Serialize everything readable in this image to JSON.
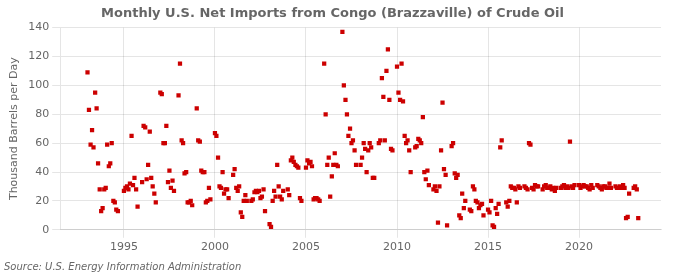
{
  "chart_data": {
    "type": "scatter",
    "title": "Monthly U.S. Net Imports from Congo (Brazzaville) of Crude Oil",
    "ylabel": "Thousand Barrels per Day",
    "annotation": "Source: U.S. Energy Information Administration",
    "color": "#cc0000",
    "marker": "square",
    "grid": true,
    "xlim": [
      1991.5,
      2024.5
    ],
    "xticks": [
      1995,
      2000,
      2005,
      2010,
      2015,
      2020
    ],
    "ylim": [
      0,
      140
    ],
    "yticks": [
      0,
      20,
      40,
      60,
      80,
      100,
      120,
      140
    ],
    "x": [
      1993.0,
      1993.08,
      1993.17,
      1993.25,
      1993.33,
      1993.42,
      1993.5,
      1993.58,
      1993.67,
      1993.75,
      1993.83,
      1993.92,
      1994.0,
      1994.08,
      1994.17,
      1994.25,
      1994.33,
      1994.42,
      1994.5,
      1994.58,
      1994.67,
      1995.0,
      1995.08,
      1995.17,
      1995.25,
      1995.33,
      1995.42,
      1995.5,
      1995.58,
      1995.67,
      1995.75,
      1996.0,
      1996.08,
      1996.17,
      1996.25,
      1996.33,
      1996.42,
      1996.5,
      1996.58,
      1996.67,
      1996.75,
      1997.0,
      1997.08,
      1997.17,
      1997.25,
      1997.33,
      1997.42,
      1997.5,
      1997.58,
      1997.67,
      1997.75,
      1998.0,
      1998.08,
      1998.17,
      1998.25,
      1998.33,
      1998.42,
      1998.5,
      1998.58,
      1998.67,
      1998.75,
      1999.0,
      1999.08,
      1999.17,
      1999.25,
      1999.33,
      1999.42,
      1999.5,
      1999.58,
      1999.67,
      1999.75,
      2000.0,
      2000.08,
      2000.17,
      2000.25,
      2000.33,
      2000.42,
      2000.5,
      2000.58,
      2000.67,
      2000.75,
      2001.0,
      2001.08,
      2001.17,
      2001.25,
      2001.33,
      2001.42,
      2001.5,
      2001.58,
      2001.67,
      2001.75,
      2002.0,
      2002.08,
      2002.17,
      2002.25,
      2002.33,
      2002.42,
      2002.5,
      2002.58,
      2002.67,
      2002.75,
      2003.0,
      2003.08,
      2003.17,
      2003.25,
      2003.33,
      2003.42,
      2003.5,
      2003.58,
      2003.67,
      2003.75,
      2004.0,
      2004.08,
      2004.17,
      2004.25,
      2004.33,
      2004.42,
      2004.5,
      2004.58,
      2004.67,
      2004.75,
      2005.0,
      2005.08,
      2005.17,
      2005.25,
      2005.33,
      2005.42,
      2005.5,
      2005.58,
      2005.67,
      2005.75,
      2006.0,
      2006.08,
      2006.17,
      2006.25,
      2006.33,
      2006.42,
      2006.5,
      2006.58,
      2006.67,
      2006.75,
      2007.0,
      2007.08,
      2007.17,
      2007.25,
      2007.33,
      2007.42,
      2007.5,
      2007.58,
      2007.67,
      2007.75,
      2008.0,
      2008.08,
      2008.17,
      2008.25,
      2008.33,
      2008.42,
      2008.5,
      2008.58,
      2008.67,
      2008.75,
      2009.0,
      2009.08,
      2009.17,
      2009.25,
      2009.33,
      2009.42,
      2009.5,
      2009.58,
      2009.67,
      2009.75,
      2010.0,
      2010.08,
      2010.17,
      2010.25,
      2010.33,
      2010.42,
      2010.5,
      2010.58,
      2010.67,
      2010.75,
      2011.0,
      2011.08,
      2011.17,
      2011.25,
      2011.33,
      2011.42,
      2011.5,
      2011.58,
      2011.67,
      2011.75,
      2012.0,
      2012.08,
      2012.17,
      2012.25,
      2012.33,
      2012.42,
      2012.5,
      2012.58,
      2012.67,
      2012.75,
      2013.0,
      2013.08,
      2013.17,
      2013.25,
      2013.33,
      2013.42,
      2013.5,
      2013.58,
      2013.67,
      2013.75,
      2014.0,
      2014.08,
      2014.17,
      2014.25,
      2014.33,
      2014.42,
      2014.5,
      2014.58,
      2014.67,
      2014.75,
      2015.0,
      2015.08,
      2015.17,
      2015.25,
      2015.33,
      2015.42,
      2015.5,
      2015.58,
      2015.67,
      2015.75,
      2016.0,
      2016.08,
      2016.17,
      2016.25,
      2016.33,
      2016.42,
      2016.5,
      2016.58,
      2016.67,
      2016.75,
      2017.0,
      2017.08,
      2017.17,
      2017.25,
      2017.33,
      2017.42,
      2017.5,
      2017.58,
      2017.67,
      2017.75,
      2018.0,
      2018.08,
      2018.17,
      2018.25,
      2018.33,
      2018.42,
      2018.5,
      2018.58,
      2018.67,
      2018.75,
      2019.0,
      2019.08,
      2019.17,
      2019.25,
      2019.33,
      2019.42,
      2019.5,
      2019.58,
      2019.67,
      2019.75,
      2020.0,
      2020.08,
      2020.17,
      2020.25,
      2020.33,
      2020.42,
      2020.5,
      2020.58,
      2020.67,
      2020.75,
      2021.0,
      2021.08,
      2021.17,
      2021.25,
      2021.33,
      2021.42,
      2021.5,
      2021.58,
      2021.67,
      2021.75,
      2022.0,
      2022.08,
      2022.17,
      2022.25,
      2022.33,
      2022.42,
      2022.5,
      2022.58,
      2022.67,
      2022.75,
      2023.0,
      2023.08,
      2023.17,
      2023.25
    ],
    "values": [
      109,
      83,
      59,
      69,
      57,
      95,
      84,
      46,
      28,
      13,
      15,
      28,
      29,
      59,
      44,
      46,
      60,
      20,
      19,
      14,
      13,
      27,
      29,
      30,
      28,
      32,
      65,
      31,
      36,
      28,
      16,
      33,
      72,
      71,
      35,
      45,
      68,
      36,
      30,
      25,
      19,
      95,
      94,
      60,
      60,
      72,
      33,
      41,
      29,
      34,
      27,
      93,
      115,
      62,
      60,
      39,
      40,
      19,
      19,
      20,
      17,
      84,
      62,
      61,
      41,
      40,
      40,
      19,
      20,
      29,
      21,
      67,
      65,
      50,
      30,
      29,
      40,
      25,
      28,
      28,
      22,
      38,
      42,
      29,
      27,
      30,
      12,
      9,
      20,
      24,
      20,
      20,
      21,
      26,
      27,
      26,
      27,
      22,
      23,
      28,
      13,
      4,
      2,
      20,
      27,
      23,
      45,
      30,
      23,
      21,
      27,
      28,
      24,
      48,
      50,
      47,
      45,
      44,
      43,
      22,
      20,
      43,
      48,
      46,
      47,
      44,
      21,
      22,
      22,
      21,
      20,
      115,
      80,
      45,
      50,
      23,
      37,
      45,
      53,
      45,
      44,
      137,
      100,
      90,
      80,
      65,
      70,
      60,
      62,
      55,
      45,
      45,
      50,
      60,
      56,
      40,
      55,
      60,
      57,
      36,
      36,
      60,
      62,
      105,
      92,
      62,
      110,
      125,
      90,
      56,
      55,
      113,
      95,
      90,
      115,
      89,
      65,
      60,
      62,
      55,
      40,
      57,
      58,
      63,
      62,
      60,
      78,
      40,
      35,
      41,
      31,
      28,
      30,
      27,
      5,
      30,
      55,
      88,
      42,
      38,
      3,
      58,
      60,
      39,
      36,
      38,
      10,
      8,
      25,
      15,
      20,
      14,
      13,
      30,
      28,
      20,
      19,
      15,
      17,
      18,
      10,
      14,
      12,
      20,
      3,
      2,
      15,
      11,
      18,
      57,
      62,
      19,
      16,
      20,
      30,
      29,
      29,
      28,
      19,
      30,
      29,
      30,
      29,
      28,
      60,
      59,
      29,
      28,
      31,
      30,
      30,
      28,
      30,
      31,
      29,
      29,
      30,
      28,
      29,
      27,
      29,
      29,
      30,
      31,
      29,
      30,
      29,
      61,
      30,
      29,
      31,
      31,
      29,
      30,
      31,
      30,
      30,
      29,
      28,
      31,
      29,
      31,
      30,
      29,
      28,
      30,
      30,
      29,
      29,
      32,
      29,
      30,
      29,
      29,
      30,
      29,
      31,
      29,
      8,
      9,
      25,
      29,
      30,
      28,
      8
    ]
  }
}
